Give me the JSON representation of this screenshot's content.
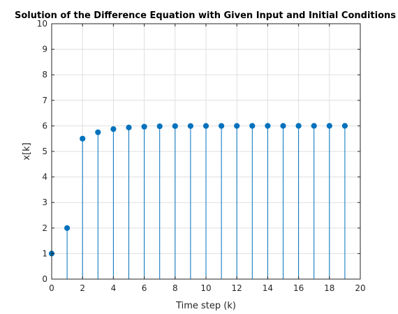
{
  "chart_data": {
    "type": "stem",
    "title": "Solution of the Difference Equation with Given Input and Initial Conditions",
    "xlabel": "Time step (k)",
    "ylabel": "x[k]",
    "xlim": [
      0,
      20
    ],
    "ylim": [
      0,
      10
    ],
    "xticks": [
      0,
      2,
      4,
      6,
      8,
      10,
      12,
      14,
      16,
      18,
      20
    ],
    "yticks": [
      0,
      1,
      2,
      3,
      4,
      5,
      6,
      7,
      8,
      9,
      10
    ],
    "grid": true,
    "series_color": "#0072BD",
    "x": [
      0,
      1,
      2,
      3,
      4,
      5,
      6,
      7,
      8,
      9,
      10,
      11,
      12,
      13,
      14,
      15,
      16,
      17,
      18,
      19
    ],
    "y": [
      1,
      2,
      5.5,
      5.75,
      5.875,
      5.9375,
      5.96875,
      5.984,
      5.992,
      5.996,
      5.998,
      5.999,
      5.9995,
      5.9998,
      5.9999,
      6,
      6,
      6,
      6,
      6
    ]
  }
}
